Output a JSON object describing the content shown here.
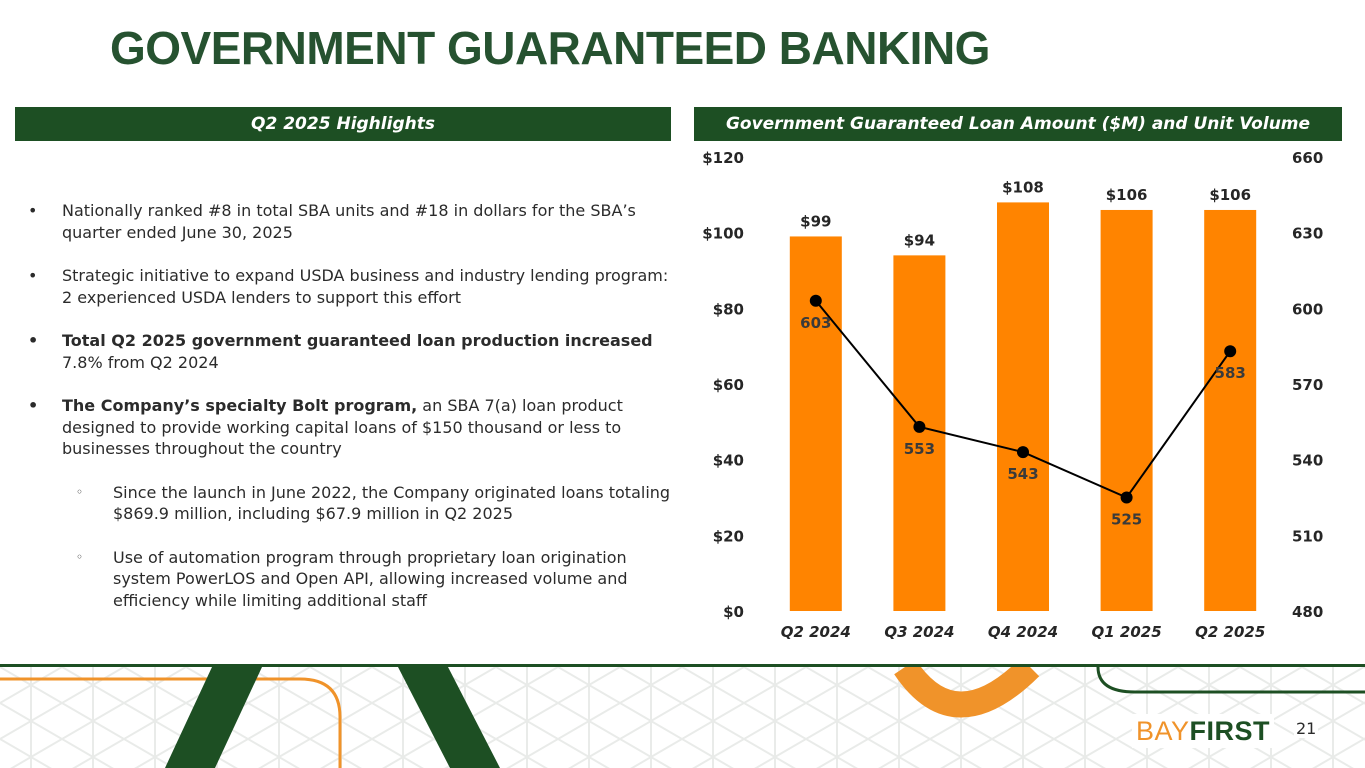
{
  "title": "GOVERNMENT GUARANTEED BANKING",
  "left_header": "Q2 2025 Highlights",
  "right_header": "Government Guaranteed Loan Amount ($M) and Unit Volume",
  "bullets": [
    {
      "bold": "",
      "text": "Nationally ranked #8 in total SBA units and #18 in dollars for the SBA’s quarter ended June 30, 2025"
    },
    {
      "bold": "",
      "text": "Strategic initiative to expand USDA business and industry lending program: 2 experienced USDA lenders to support this effort"
    },
    {
      "bold": "Total Q2 2025 government guaranteed loan production increased",
      "text": " 7.8% from Q2 2024"
    },
    {
      "bold": "The Company’s specialty Bolt program,",
      "text": " an SBA 7(a) loan product designed to provide working capital loans of $150 thousand or less to businesses throughout the country"
    }
  ],
  "sub_bullets": [
    "Since the launch in June 2022, the Company originated loans totaling $869.9 million, including $67.9 million in Q2 2025",
    "Use of automation program through proprietary loan origination system PowerLOS and Open API, allowing increased volume and efficiency while limiting additional staff"
  ],
  "bullet_glyph": "•",
  "sub_bullet_glyph": "◦",
  "chart_data": {
    "type": "bar",
    "title": "Government Guaranteed Loan Amount ($M) and Unit Volume",
    "categories": [
      "Q2 2024",
      "Q3 2024",
      "Q4 2024",
      "Q1 2025",
      "Q2 2025"
    ],
    "series": [
      {
        "name": "Loan Amount ($M)",
        "type": "bar",
        "axis": "left",
        "values": [
          99,
          94,
          108,
          106,
          106
        ],
        "labels": [
          "$99",
          "$94",
          "$108",
          "$106",
          "$106"
        ],
        "color": "#ff8400"
      },
      {
        "name": "Unit Volume",
        "type": "line",
        "axis": "right",
        "values": [
          603,
          553,
          543,
          525,
          583
        ],
        "labels": [
          "603",
          "553",
          "543",
          "525",
          "583"
        ],
        "color": "#000000"
      }
    ],
    "y_left": {
      "ylim": [
        0,
        120
      ],
      "ticks": [
        0,
        20,
        40,
        60,
        80,
        100,
        120
      ],
      "tick_labels": [
        "$0",
        "$20",
        "$40",
        "$60",
        "$80",
        "$100",
        "$120"
      ]
    },
    "y_right": {
      "ylim": [
        480,
        660
      ],
      "ticks": [
        480,
        510,
        540,
        570,
        600,
        630,
        660
      ],
      "tick_labels": [
        "480",
        "510",
        "540",
        "570",
        "600",
        "630",
        "660"
      ]
    },
    "xlabel": "",
    "ylabel": "",
    "grid": false,
    "legend": "none"
  },
  "logo": {
    "part1": "BAY",
    "part2": "FIRST"
  },
  "page_number": "21",
  "colors": {
    "dark_green": "#1d4f23",
    "title_green": "#265230",
    "orange": "#ff8400",
    "line": "#000000"
  }
}
